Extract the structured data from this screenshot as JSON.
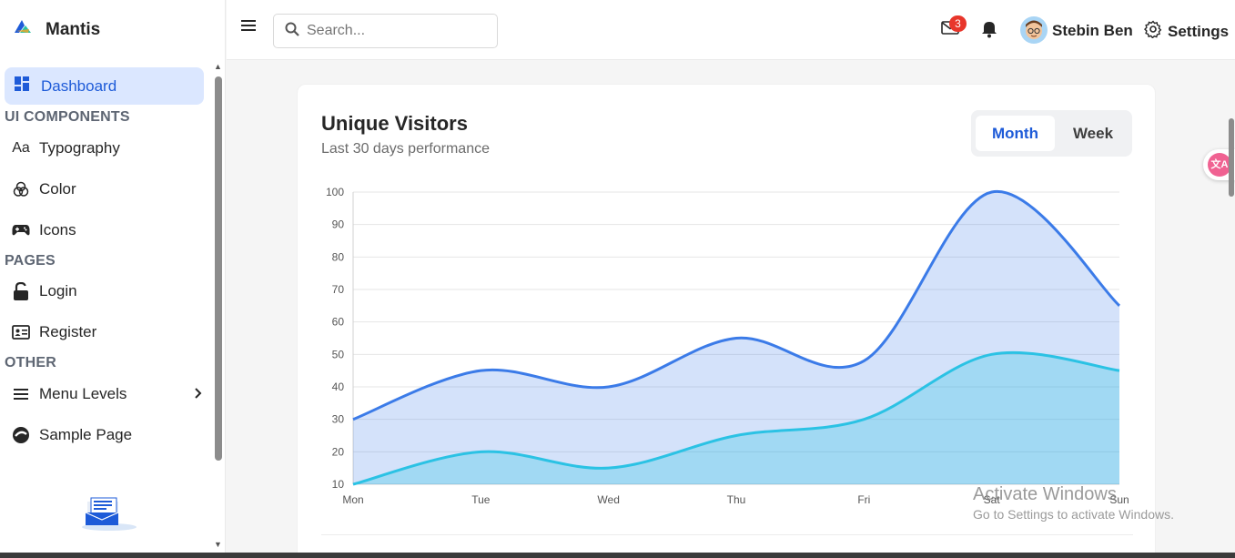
{
  "app": {
    "title": "Mantis"
  },
  "sidebar": {
    "active": {
      "label": "Dashboard",
      "icon": "dashboard-icon"
    },
    "sections": [
      {
        "title": "UI COMPONENTS",
        "items": [
          {
            "label": "Typography",
            "icon": "typography-icon"
          },
          {
            "label": "Color",
            "icon": "color-icon"
          },
          {
            "label": "Icons",
            "icon": "gamepad-icon"
          }
        ]
      },
      {
        "title": "PAGES",
        "items": [
          {
            "label": "Login",
            "icon": "lock-icon"
          },
          {
            "label": "Register",
            "icon": "id-card-icon"
          }
        ]
      },
      {
        "title": "OTHER",
        "items": [
          {
            "label": "Menu Levels",
            "icon": "menu-icon"
          },
          {
            "label": "Sample Page",
            "icon": "sample-icon"
          }
        ]
      }
    ]
  },
  "header": {
    "search_placeholder": "Search...",
    "mail_badge": "3",
    "user_name": "Stebin Ben",
    "settings_label": "Settings"
  },
  "card": {
    "title": "Unique Visitors",
    "subtitle": "Last 30 days performance",
    "toggle": {
      "month": "Month",
      "week": "Week",
      "selected": "Month"
    }
  },
  "chart_data": {
    "type": "area",
    "categories": [
      "Mon",
      "Tue",
      "Wed",
      "Thu",
      "Fri",
      "Sat",
      "Sun"
    ],
    "ylim": [
      10,
      100
    ],
    "yticks": [
      10,
      20,
      30,
      40,
      50,
      60,
      70,
      80,
      90,
      100
    ],
    "grid": true,
    "series": [
      {
        "values": [
          30,
          45,
          40,
          55,
          48,
          100,
          65
        ],
        "color": "#3b7be8"
      },
      {
        "values": [
          10,
          20,
          15,
          25,
          30,
          50,
          45
        ],
        "color": "#2bc2e4"
      }
    ]
  },
  "overlay": {
    "activate_title": "Activate Windows",
    "activate_sub": "Go to Settings to activate Windows."
  }
}
